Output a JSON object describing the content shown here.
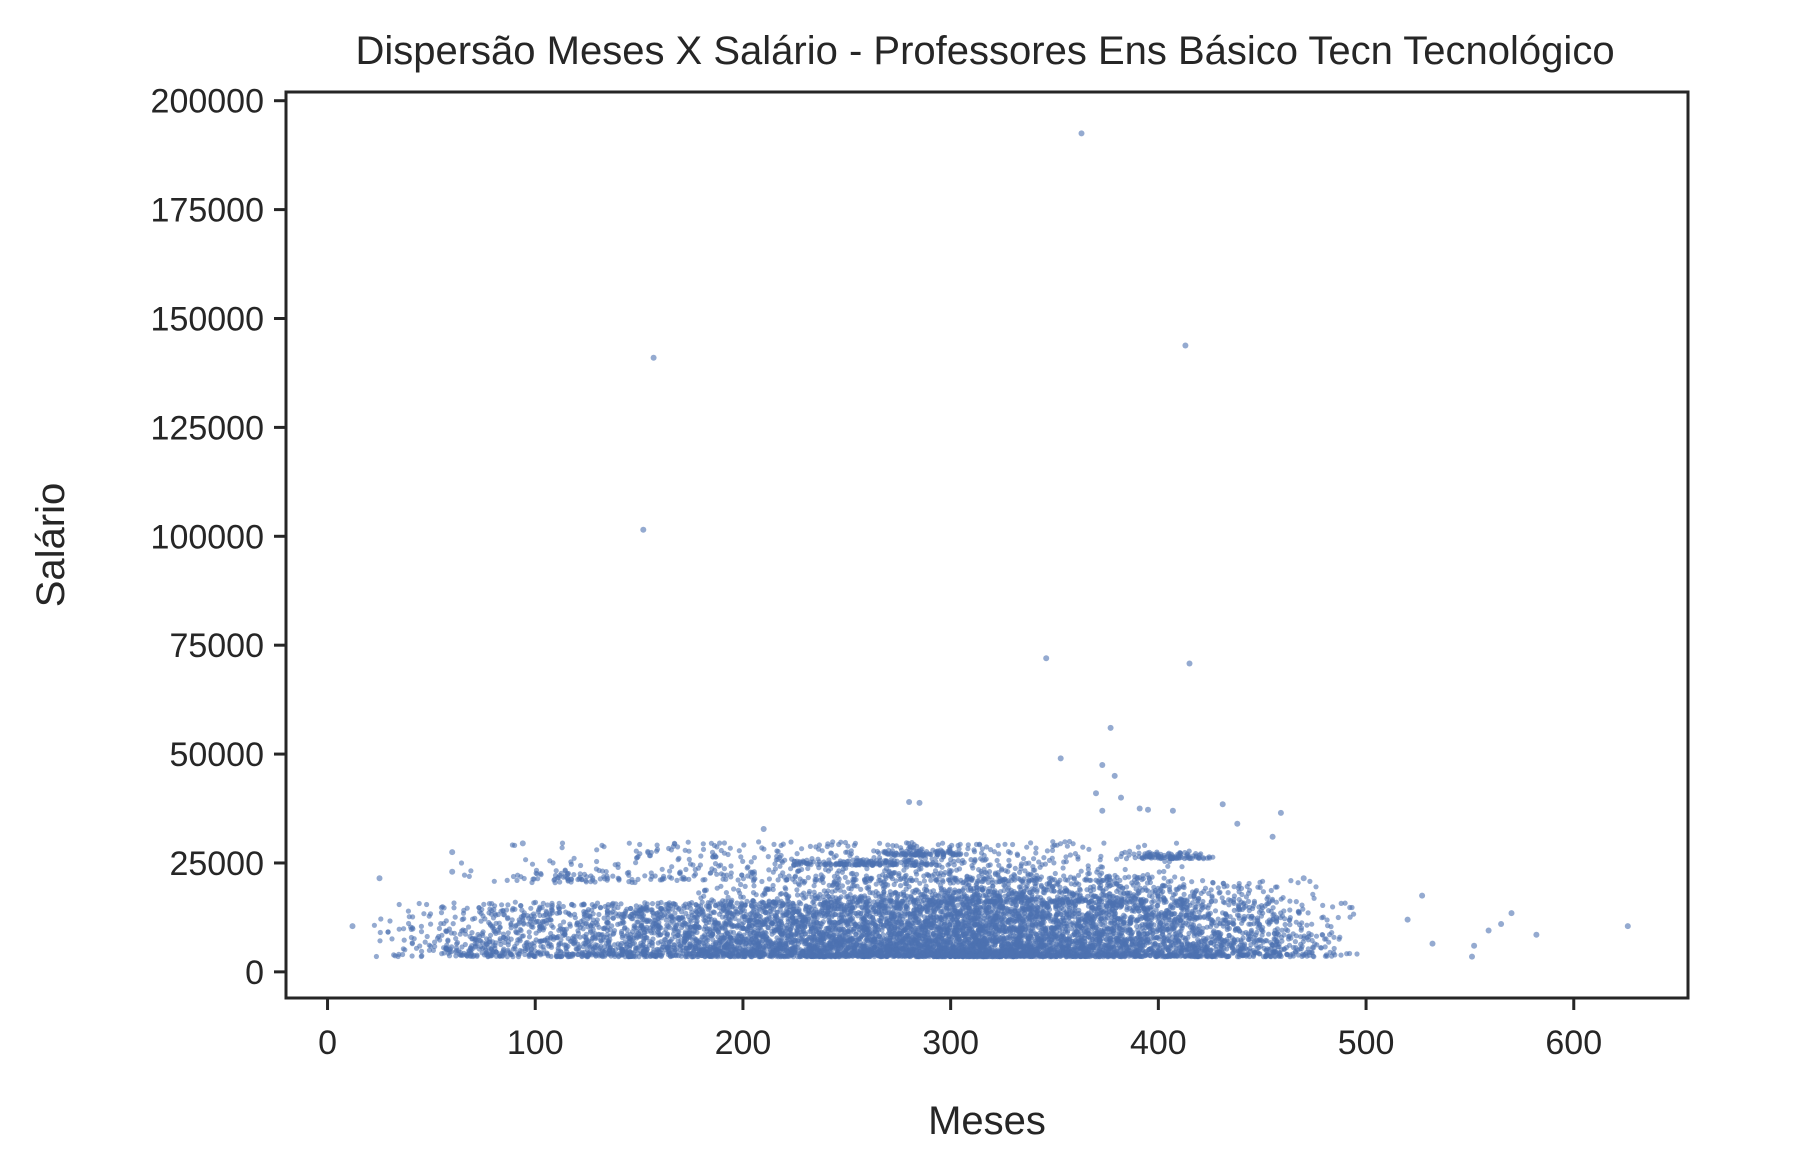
{
  "chart_data": {
    "type": "scatter",
    "title": "Dispersão Meses X Salário - Professores Ens Básico Tecn Tecnológico",
    "xlabel": "Meses",
    "ylabel": "Salário",
    "xlim": [
      -20,
      655
    ],
    "ylim": [
      -6000,
      202000
    ],
    "xticks": [
      0,
      100,
      200,
      300,
      400,
      500,
      600
    ],
    "yticks": [
      0,
      25000,
      50000,
      75000,
      100000,
      125000,
      150000,
      175000,
      200000
    ],
    "grid": false,
    "color": "#4c72b0",
    "outliers": [
      {
        "x": 363,
        "y": 192500
      },
      {
        "x": 413,
        "y": 143800
      },
      {
        "x": 157,
        "y": 141000
      },
      {
        "x": 152,
        "y": 101500
      },
      {
        "x": 346,
        "y": 72000
      },
      {
        "x": 415,
        "y": 70800
      },
      {
        "x": 377,
        "y": 56000
      },
      {
        "x": 353,
        "y": 49000
      },
      {
        "x": 373,
        "y": 47500
      },
      {
        "x": 379,
        "y": 45000
      },
      {
        "x": 370,
        "y": 41000
      },
      {
        "x": 382,
        "y": 40000
      },
      {
        "x": 280,
        "y": 39000
      },
      {
        "x": 285,
        "y": 38800
      },
      {
        "x": 431,
        "y": 38500
      },
      {
        "x": 391,
        "y": 37500
      },
      {
        "x": 373,
        "y": 37000
      },
      {
        "x": 459,
        "y": 36500
      },
      {
        "x": 395,
        "y": 37200
      },
      {
        "x": 407,
        "y": 37000
      },
      {
        "x": 438,
        "y": 34000
      },
      {
        "x": 210,
        "y": 32800
      },
      {
        "x": 455,
        "y": 31000
      },
      {
        "x": 626,
        "y": 10500
      },
      {
        "x": 582,
        "y": 8500
      },
      {
        "x": 570,
        "y": 13500
      },
      {
        "x": 565,
        "y": 11000
      },
      {
        "x": 559,
        "y": 9500
      },
      {
        "x": 551,
        "y": 3500
      },
      {
        "x": 552,
        "y": 6000
      },
      {
        "x": 532,
        "y": 6500
      },
      {
        "x": 527,
        "y": 17500
      },
      {
        "x": 520,
        "y": 12000
      },
      {
        "x": 12,
        "y": 10500
      },
      {
        "x": 25,
        "y": 21500
      },
      {
        "x": 60,
        "y": 27500
      },
      {
        "x": 60,
        "y": 23000
      },
      {
        "x": 94,
        "y": 29500
      },
      {
        "x": 470,
        "y": 21500
      }
    ],
    "clusters": [
      {
        "x_range": [
          20,
          500
        ],
        "y_range": [
          3500,
          16000
        ],
        "peak_x": 320,
        "count": 7000
      },
      {
        "x_range": [
          160,
          480
        ],
        "y_range": [
          16000,
          21000
        ],
        "peak_x": 340,
        "count": 900
      },
      {
        "x_range": [
          60,
          430
        ],
        "y_range": [
          21000,
          30000
        ],
        "peak_x": 330,
        "count": 650
      },
      {
        "x_range": [
          215,
          310
        ],
        "y_range": [
          24500,
          25800
        ],
        "peak_x": 260,
        "count": 160
      },
      {
        "x_range": [
          260,
          310
        ],
        "y_range": [
          26800,
          28000
        ],
        "peak_x": 285,
        "count": 90
      },
      {
        "x_range": [
          380,
          430
        ],
        "y_range": [
          26000,
          27500
        ],
        "peak_x": 405,
        "count": 90
      },
      {
        "x_range": [
          60,
          200
        ],
        "y_range": [
          20500,
          23500
        ],
        "peak_x": 110,
        "count": 60
      }
    ]
  }
}
